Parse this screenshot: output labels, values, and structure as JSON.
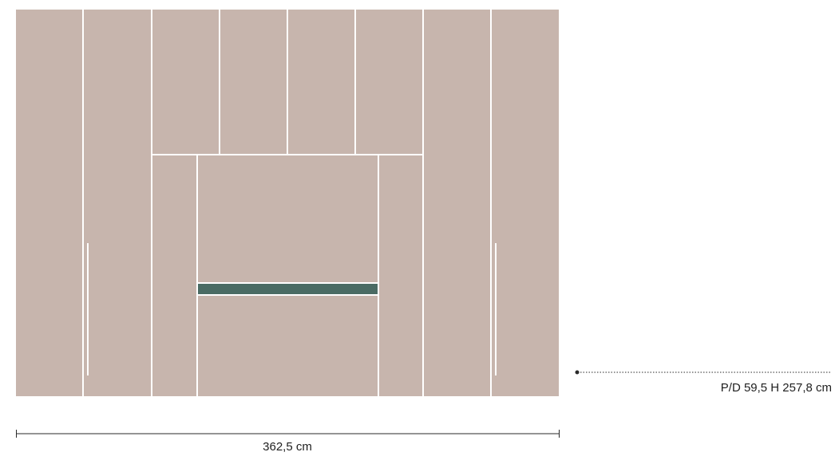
{
  "colors": {
    "panel": "#c7b5ad",
    "gap": "#ffffff",
    "shelf": "#4a6b64",
    "line": "#2a2a2a"
  },
  "dimensions": {
    "width_label": "362,5 cm",
    "depth_height_label": "P/D 59,5 H 257,8 cm"
  }
}
